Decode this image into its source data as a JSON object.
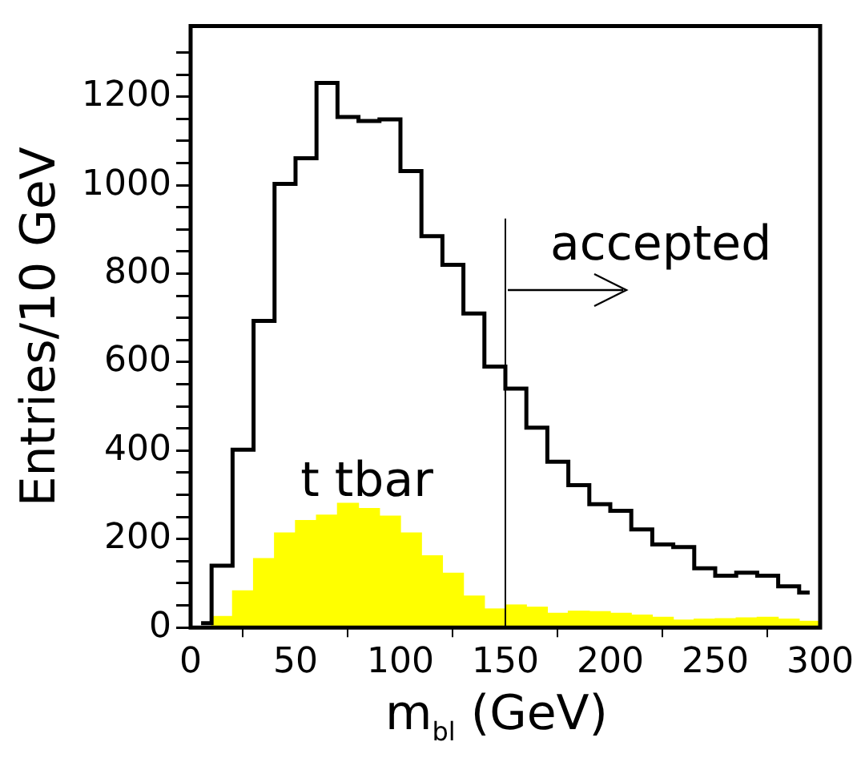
{
  "chart_data": {
    "type": "histogram",
    "xlabel": "m$_{bl}$ (GeV)",
    "ylabel": "Entries/10 GeV",
    "bins": [
      0,
      10,
      20,
      30,
      40,
      50,
      60,
      70,
      80,
      90,
      100,
      110,
      120,
      130,
      140,
      150,
      160,
      170,
      180,
      190,
      200,
      210,
      220,
      230,
      240,
      250,
      260,
      270,
      280,
      290,
      300
    ],
    "series": [
      {
        "type": "step",
        "color": "#000000",
        "x": [
          5,
          15,
          25,
          35,
          45,
          55,
          65,
          75,
          85,
          95,
          105,
          115,
          125,
          135,
          145,
          155,
          165,
          175,
          185,
          195,
          205,
          215,
          225,
          235,
          245,
          255,
          265,
          275,
          285,
          295
        ],
        "values": [
          10,
          140,
          402,
          693,
          1003,
          1061,
          1231,
          1154,
          1145,
          1149,
          1032,
          885,
          820,
          710,
          590,
          540,
          452,
          375,
          322,
          279,
          264,
          222,
          188,
          182,
          134,
          117,
          124,
          117,
          93,
          79
        ]
      },
      {
        "color": "#ffff00",
        "values": [
          null,
          25,
          83,
          156,
          214,
          242,
          254,
          281,
          269,
          252,
          214,
          162,
          123,
          71,
          42,
          51,
          46,
          32,
          37,
          36,
          32,
          28,
          23,
          17,
          19,
          20,
          22,
          23,
          19,
          14
        ]
      }
    ],
    "xlim": [
      0,
      300
    ],
    "ylim": [
      0,
      1360
    ],
    "xticks": [
      0,
      50,
      100,
      150,
      200,
      250,
      300
    ],
    "yticks": [
      0,
      {
        "value": 50,
        "label": null
      },
      {
        "value": 100,
        "label": null
      },
      {
        "value": 150,
        "label": null
      },
      200,
      {
        "value": 250,
        "label": null
      },
      {
        "value": 300,
        "label": null
      },
      {
        "value": 350,
        "label": null
      },
      400,
      {
        "value": 450,
        "label": null
      },
      {
        "value": 500,
        "label": null
      },
      {
        "value": 550,
        "label": null
      },
      600,
      {
        "value": 650,
        "label": null
      },
      {
        "value": 700,
        "label": null
      },
      {
        "value": 750,
        "label": null
      },
      800,
      {
        "value": 850,
        "label": null
      },
      {
        "value": 900,
        "label": null
      },
      {
        "value": 950,
        "label": null
      },
      1000,
      {
        "value": 1050,
        "label": null
      },
      {
        "value": 1100,
        "label": null
      },
      {
        "value": 1150,
        "label": null
      },
      1200,
      {
        "value": 1250,
        "label": null
      },
      {
        "value": 1300,
        "label": null
      }
    ],
    "ref_lines": [
      {
        "axis": "x",
        "value": 150,
        "label": "accepted",
        "color": "#000000"
      }
    ],
    "annotations": [
      "t tbar"
    ],
    "grid": false,
    "legend": false
  }
}
